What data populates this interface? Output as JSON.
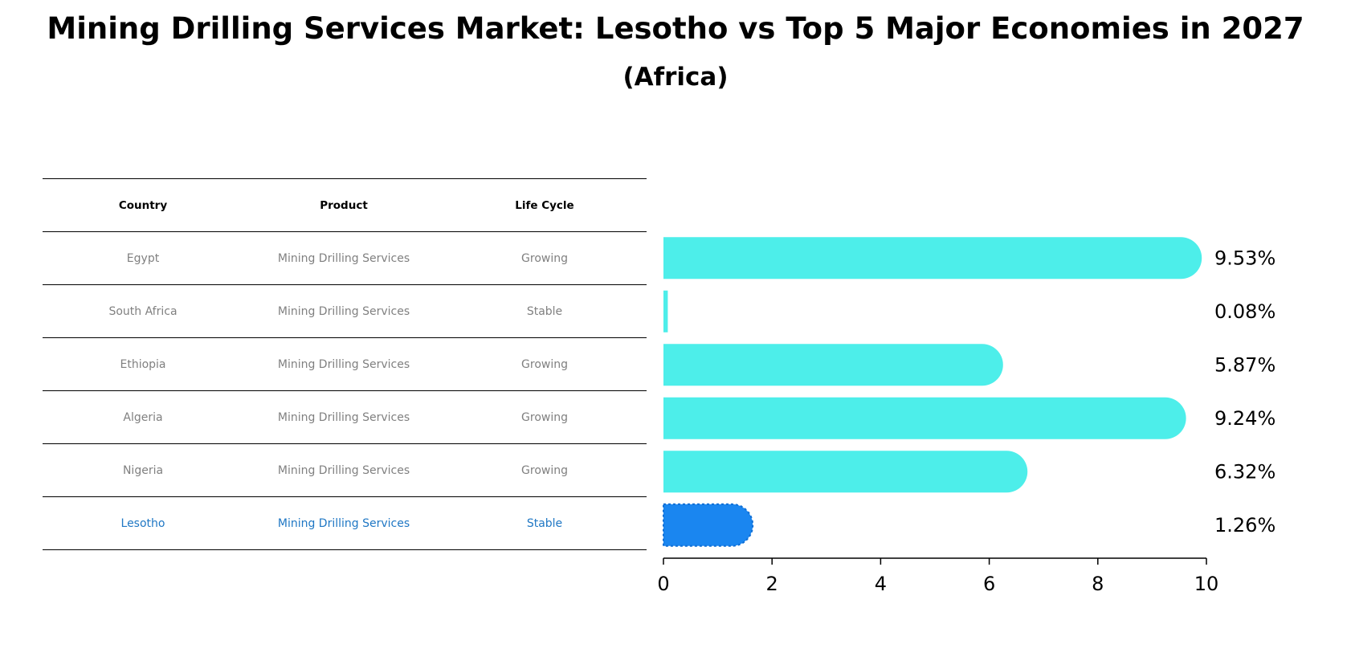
{
  "title": "Mining Drilling Services Market: Lesotho vs Top 5 Major Economies in 2027",
  "subtitle": "(Africa)",
  "table": {
    "headers": {
      "country": "Country",
      "product": "Product",
      "life_cycle": "Life Cycle"
    },
    "rows": [
      {
        "country": "Egypt",
        "product": "Mining Drilling Services",
        "life_cycle": "Growing"
      },
      {
        "country": "South Africa",
        "product": "Mining Drilling Services",
        "life_cycle": "Stable"
      },
      {
        "country": "Ethiopia",
        "product": "Mining Drilling Services",
        "life_cycle": "Growing"
      },
      {
        "country": "Algeria",
        "product": "Mining Drilling Services",
        "life_cycle": "Growing"
      },
      {
        "country": "Nigeria",
        "product": "Mining Drilling Services",
        "life_cycle": "Growing"
      },
      {
        "country": "Lesotho",
        "product": "Mining Drilling Services",
        "life_cycle": "Stable"
      }
    ]
  },
  "chart_data": {
    "type": "bar",
    "orientation": "horizontal",
    "categories": [
      "Egypt",
      "South Africa",
      "Ethiopia",
      "Algeria",
      "Nigeria",
      "Lesotho"
    ],
    "values": [
      9.53,
      0.08,
      5.87,
      9.24,
      6.32,
      1.26
    ],
    "value_labels": [
      "9.53%",
      "0.08%",
      "5.87%",
      "9.24%",
      "6.32%",
      "1.26%"
    ],
    "highlight": "Lesotho",
    "xlim": [
      0,
      10
    ],
    "xticks": [
      0,
      2,
      4,
      6,
      8,
      10
    ],
    "colors": {
      "default": "#4deeea",
      "highlight": "#1a86f0"
    }
  }
}
